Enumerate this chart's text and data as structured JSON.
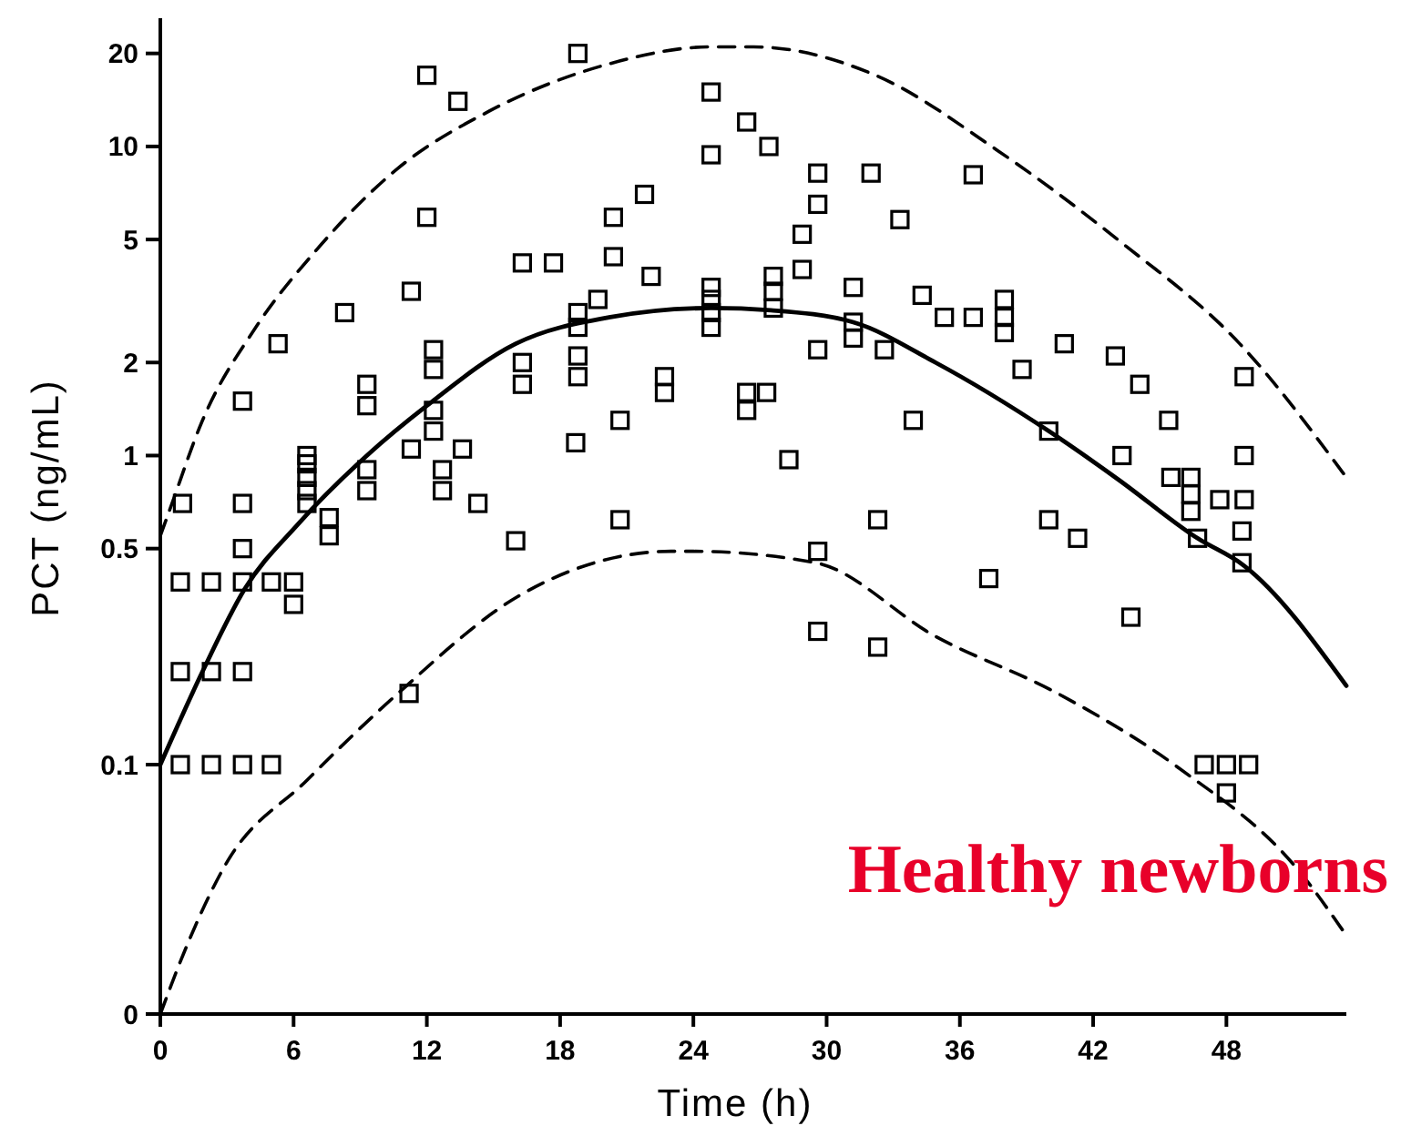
{
  "chart_data": {
    "type": "scatter",
    "xlabel": "Time (h)",
    "ylabel": "PCT (ng/mL)",
    "log": "y",
    "grid": false,
    "xlim": [
      0,
      53.4
    ],
    "xticks": [
      0,
      6,
      12,
      18,
      24,
      30,
      36,
      42,
      48
    ],
    "ylim": [
      0.0156,
      26
    ],
    "yticks": [
      {
        "value": 0.0156,
        "label": "0"
      },
      0.1,
      0.5,
      1,
      2,
      5,
      10,
      20
    ],
    "annotations": [
      "Healthy newborns"
    ],
    "series": [
      {
        "color": "#000000",
        "marker": "square",
        "x": [
          1.0,
          0.9,
          0.9,
          0.9,
          2.3,
          2.3,
          2.3,
          3.7,
          3.7,
          3.7,
          3.7,
          3.7,
          3.7,
          5.0,
          5.0,
          5.3,
          6.0,
          6.0,
          6.6,
          6.6,
          6.6,
          6.6,
          6.6,
          7.6,
          7.6,
          8.3,
          9.3,
          9.3,
          9.3,
          9.3,
          11.2,
          11.3,
          11.3,
          12.0,
          12.0,
          12.3,
          12.3,
          12.3,
          12.3,
          12.7,
          12.7,
          13.4,
          13.6,
          14.3,
          16.0,
          16.3,
          17.7,
          16.3,
          16.3,
          18.8,
          18.8,
          18.8,
          18.8,
          18.8,
          18.7,
          19.7,
          20.4,
          20.4,
          20.7,
          20.7,
          21.8,
          22.1,
          22.7,
          22.7,
          24.8,
          24.8,
          24.8,
          24.8,
          24.8,
          24.8,
          26.4,
          27.4,
          26.4,
          26.4,
          27.3,
          27.6,
          27.6,
          27.6,
          28.3,
          28.9,
          28.9,
          29.6,
          29.6,
          29.6,
          29.6,
          29.6,
          31.2,
          31.2,
          31.2,
          32.0,
          32.6,
          32.3,
          32.3,
          33.3,
          33.9,
          34.3,
          35.3,
          36.6,
          36.6,
          37.3,
          38.0,
          38.0,
          38.0,
          38.8,
          40.0,
          40.0,
          40.7,
          41.3,
          43.0,
          43.3,
          43.7,
          44.1,
          45.4,
          45.5,
          46.4,
          46.4,
          46.4,
          46.7,
          47.7,
          48.8,
          48.8,
          48.8,
          48.7,
          48.7,
          47.0,
          48.0,
          49.0,
          48.0
        ],
        "values": [
          0.7,
          0.39,
          0.2,
          0.1,
          0.39,
          0.2,
          0.1,
          1.5,
          0.7,
          0.5,
          0.39,
          0.2,
          0.1,
          0.39,
          0.1,
          2.3,
          0.39,
          0.33,
          1.0,
          0.94,
          0.85,
          0.77,
          0.7,
          0.63,
          0.55,
          2.9,
          1.7,
          1.45,
          0.9,
          0.77,
          0.17,
          3.4,
          1.05,
          17,
          5.9,
          2.2,
          1.9,
          1.4,
          1.2,
          0.9,
          0.77,
          14,
          1.05,
          0.7,
          0.53,
          4.2,
          4.2,
          2.0,
          1.7,
          20,
          2.9,
          2.6,
          2.1,
          1.8,
          1.1,
          3.2,
          5.9,
          4.4,
          1.3,
          0.62,
          7.0,
          3.8,
          1.8,
          1.6,
          15,
          9.4,
          3.5,
          3.2,
          2.9,
          2.6,
          12,
          10,
          1.6,
          1.4,
          1.6,
          3.8,
          3.4,
          3.0,
          0.97,
          5.2,
          4.0,
          8.2,
          6.5,
          2.2,
          0.49,
          0.27,
          3.5,
          2.7,
          2.4,
          8.2,
          2.2,
          0.62,
          0.24,
          5.8,
          1.3,
          3.3,
          2.8,
          2.8,
          8.1,
          0.4,
          3.2,
          2.8,
          2.5,
          1.9,
          1.2,
          0.62,
          2.3,
          0.54,
          2.1,
          1.0,
          0.3,
          1.7,
          1.3,
          0.85,
          0.85,
          0.75,
          0.66,
          0.54,
          0.72,
          0.72,
          1.8,
          1.0,
          0.57,
          0.45,
          0.1,
          0.1,
          0.1,
          0.081
        ]
      },
      {
        "type": "line",
        "color": "#000000",
        "marker": "none",
        "line_style": "solid",
        "x": [
          0,
          1.9,
          3.8,
          6.2,
          9.3,
          12,
          16,
          20.2,
          24.8,
          27.5,
          31.2,
          34.9,
          40,
          43.1,
          46.7,
          48.8,
          53.4
        ],
        "values": [
          0.1,
          0.2,
          0.37,
          0.6,
          1.0,
          1.45,
          2.3,
          2.8,
          3.0,
          2.95,
          2.7,
          2.0,
          1.2,
          0.84,
          0.54,
          0.44,
          0.18
        ]
      },
      {
        "type": "line",
        "color": "#000000",
        "marker": "none",
        "line_style": "dashed",
        "x": [
          0,
          0.4,
          1.9,
          4.3,
          7.0,
          10.7,
          14.8,
          20.2,
          24.8,
          26.7,
          32.2,
          37.7,
          43.1,
          48.6,
          53.4
        ],
        "values": [
          0.55,
          0.66,
          1.3,
          2.6,
          4.6,
          8.5,
          13,
          18.5,
          21,
          21,
          17,
          9.7,
          5,
          2.3,
          0.85
        ]
      },
      {
        "type": "line",
        "color": "#000000",
        "marker": "none",
        "line_style": "dashed",
        "x": [
          0,
          1.1,
          2.9,
          6.6,
          10.7,
          16.1,
          23,
          24,
          29.5,
          34.9,
          40.4,
          45.9,
          51.3,
          53.4
        ],
        "values": [
          0.0156,
          0.025,
          0.047,
          0.089,
          0.17,
          0.35,
          0.49,
          0.49,
          0.45,
          0.26,
          0.17,
          0.097,
          0.045,
          0.028
        ]
      }
    ]
  }
}
